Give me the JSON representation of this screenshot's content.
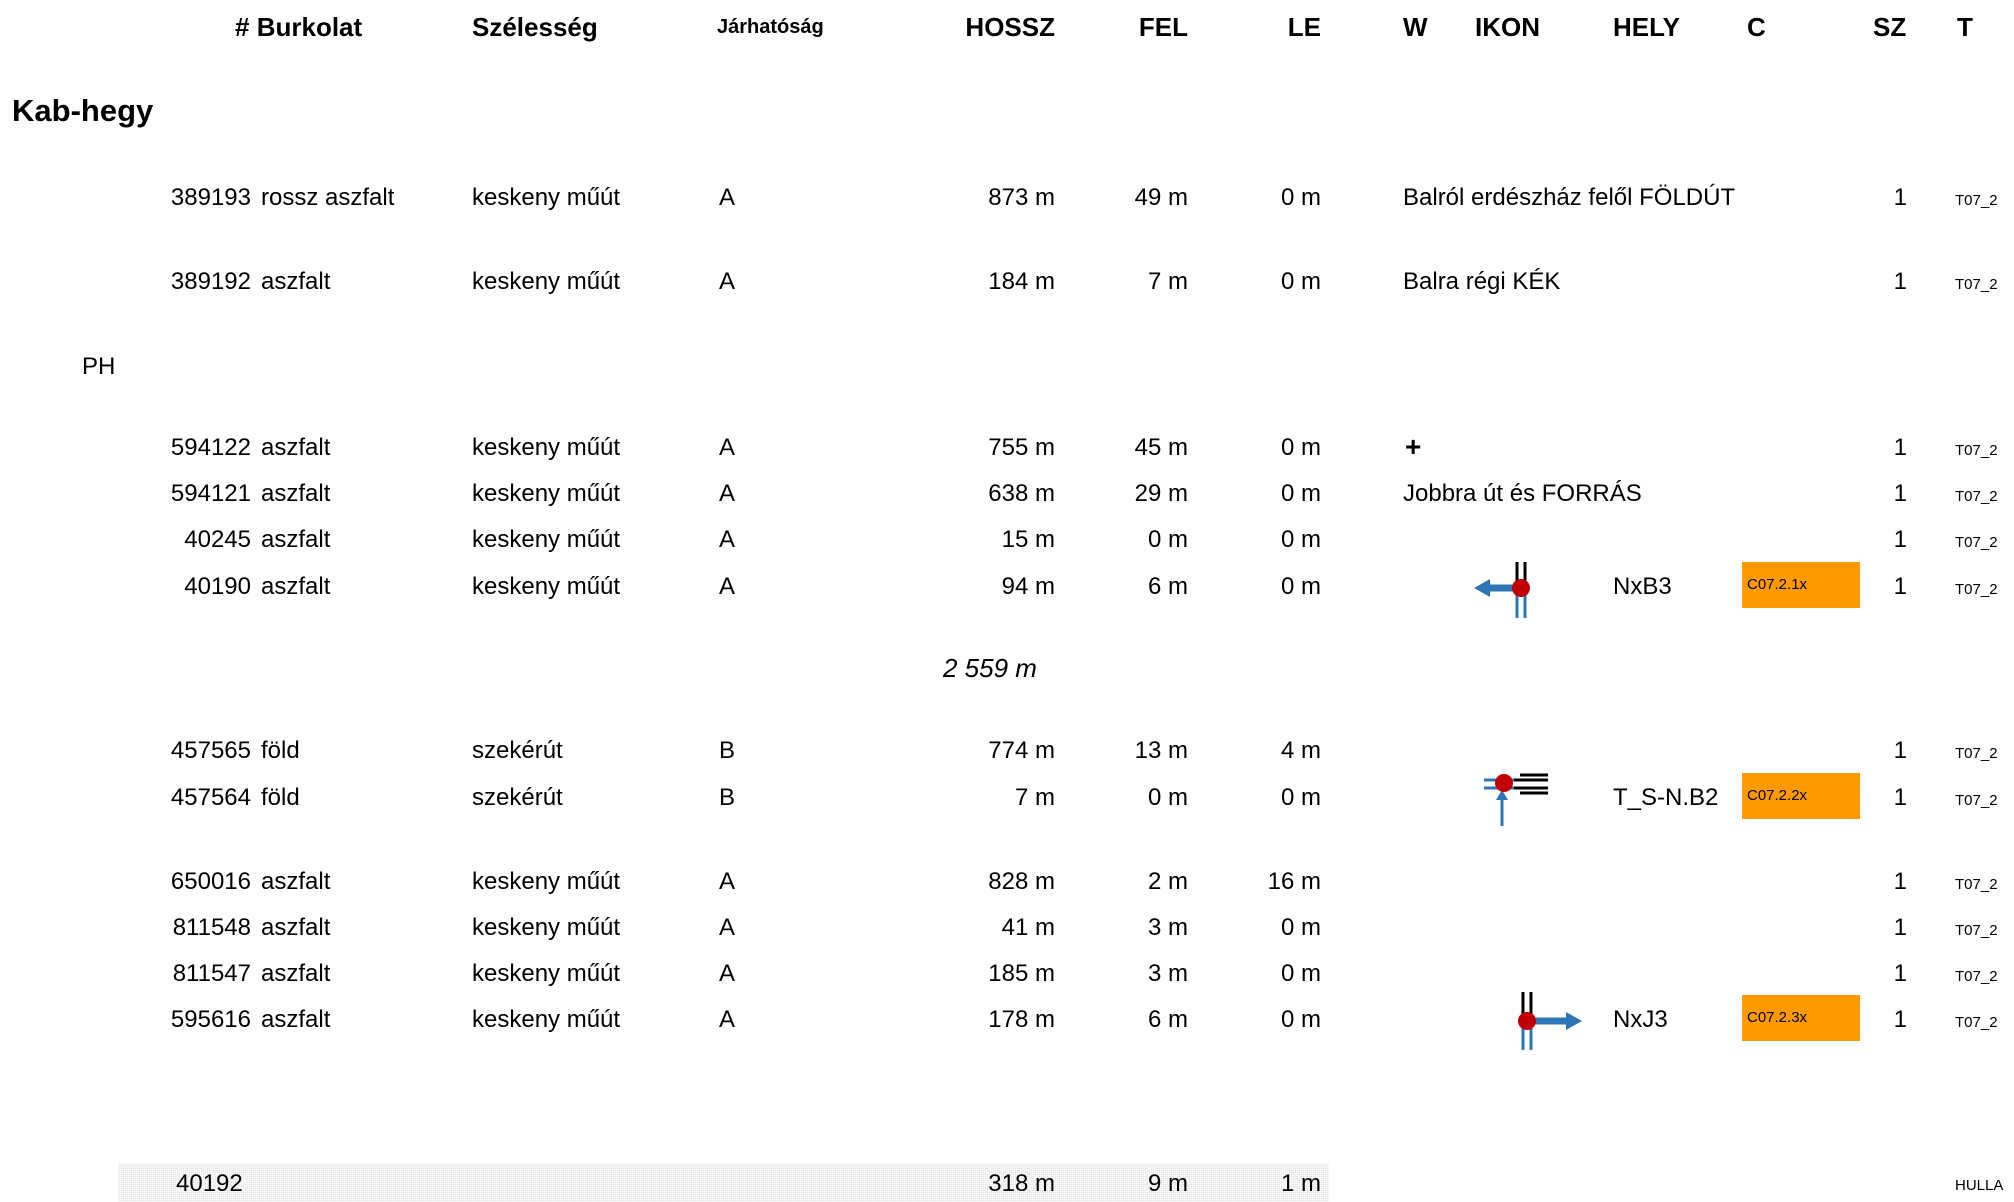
{
  "headers": {
    "id": "#",
    "surface": "Burkolat",
    "width": "Szélesség",
    "passability": "Járhatóság",
    "length": "HOSSZ",
    "up": "FEL",
    "down": "LE",
    "w": "W",
    "icon": "IKON",
    "place": "HELY",
    "c": "C",
    "sz": "SZ",
    "t": "T"
  },
  "section_title": "Kab-hegy",
  "rows": [
    {
      "id": "389193",
      "surface": "rossz aszfalt",
      "width": "keskeny műút",
      "pass": "A",
      "length": "873 m",
      "up": "49 m",
      "down": "0 m",
      "note": "Balról erdészház felől FÖLDÚT",
      "sz": "1",
      "t": "T07_2"
    },
    {
      "id": "389192",
      "surface": "aszfalt",
      "width": "keskeny műút",
      "pass": "A",
      "length": "184 m",
      "up": "7 m",
      "down": "0 m",
      "note": "Balra régi KÉK",
      "sz": "1",
      "t": "T07_2"
    },
    {
      "id": "594122",
      "surface": "aszfalt",
      "width": "keskeny műút",
      "pass": "A",
      "length": "755 m",
      "up": "45 m",
      "down": "0 m",
      "note": "+",
      "sz": "1",
      "t": "T07_2"
    },
    {
      "id": "594121",
      "surface": "aszfalt",
      "width": "keskeny műút",
      "pass": "A",
      "length": "638 m",
      "up": "29 m",
      "down": "0 m",
      "note": "Jobbra út és FORRÁS",
      "sz": "1",
      "t": "T07_2"
    },
    {
      "id": "40245",
      "surface": "aszfalt",
      "width": "keskeny műút",
      "pass": "A",
      "length": "15 m",
      "up": "0 m",
      "down": "0 m",
      "note": "",
      "sz": "1",
      "t": "T07_2"
    },
    {
      "id": "40190",
      "surface": "aszfalt",
      "width": "keskeny műút",
      "pass": "A",
      "length": "94 m",
      "up": "6 m",
      "down": "0 m",
      "icon": "junction-left-arrow-icon",
      "place": "NxB3",
      "c": "C07.2.1x",
      "sz": "1",
      "t": "T07_2"
    },
    {
      "id": "457565",
      "surface": "föld",
      "width": "szekérút",
      "pass": "B",
      "length": "774 m",
      "up": "13 m",
      "down": "4 m",
      "note": "",
      "sz": "1",
      "t": "T07_2"
    },
    {
      "id": "457564",
      "surface": "föld",
      "width": "szekérút",
      "pass": "B",
      "length": "7 m",
      "up": "0 m",
      "down": "0 m",
      "icon": "junction-t-up-arrow-icon",
      "place": "T_S-N.B2",
      "c": "C07.2.2x",
      "sz": "1",
      "t": "T07_2"
    },
    {
      "id": "650016",
      "surface": "aszfalt",
      "width": "keskeny műút",
      "pass": "A",
      "length": "828 m",
      "up": "2 m",
      "down": "16 m",
      "note": "",
      "sz": "1",
      "t": "T07_2"
    },
    {
      "id": "811548",
      "surface": "aszfalt",
      "width": "keskeny műút",
      "pass": "A",
      "length": "41 m",
      "up": "3 m",
      "down": "0 m",
      "note": "",
      "sz": "1",
      "t": "T07_2"
    },
    {
      "id": "811547",
      "surface": "aszfalt",
      "width": "keskeny műút",
      "pass": "A",
      "length": "185 m",
      "up": "3 m",
      "down": "0 m",
      "note": "",
      "sz": "1",
      "t": "T07_2"
    },
    {
      "id": "595616",
      "surface": "aszfalt",
      "width": "keskeny műút",
      "pass": "A",
      "length": "178 m",
      "up": "6 m",
      "down": "0 m",
      "icon": "junction-right-arrow-icon",
      "place": "NxJ3",
      "c": "C07.2.3x",
      "sz": "1",
      "t": "T07_2"
    }
  ],
  "ph_label": "PH",
  "subtotal": "2 559 m",
  "footer_row": {
    "id": "40192",
    "length": "318 m",
    "up": "9 m",
    "down": "1 m",
    "t": "HULLA"
  },
  "colors": {
    "badge": "#ff9900",
    "arrow": "#2e75b6",
    "node": "#c00000"
  }
}
